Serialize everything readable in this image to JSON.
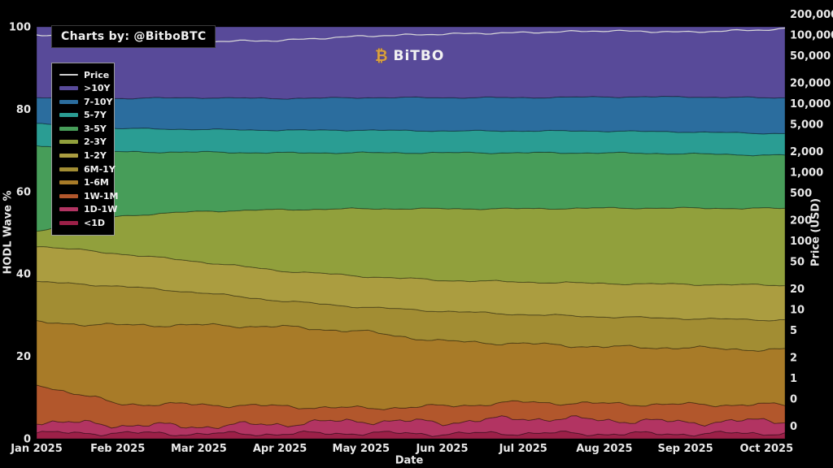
{
  "badge": {
    "text": "Charts by: @BitboBTC"
  },
  "logo": {
    "icon": "₿",
    "text": "BiTBO"
  },
  "legend": {
    "items": [
      {
        "label": "Price",
        "color": "#d0d0d0",
        "type": "line"
      },
      {
        "label": ">10Y",
        "color": "#584a99",
        "type": "area"
      },
      {
        "label": "7-10Y",
        "color": "#2b6d9e",
        "type": "area"
      },
      {
        "label": "5-7Y",
        "color": "#2a9d93",
        "type": "area"
      },
      {
        "label": "3-5Y",
        "color": "#479d59",
        "type": "area"
      },
      {
        "label": "2-3Y",
        "color": "#91a03c",
        "type": "area"
      },
      {
        "label": "1-2Y",
        "color": "#ab9d40",
        "type": "area"
      },
      {
        "label": "6M-1Y",
        "color": "#a28d33",
        "type": "area"
      },
      {
        "label": "1-6M",
        "color": "#a87b28",
        "type": "area"
      },
      {
        "label": "1W-1M",
        "color": "#b2572c",
        "type": "area"
      },
      {
        "label": "1D-1W",
        "color": "#b23462",
        "type": "area"
      },
      {
        "label": "<1D",
        "color": "#9c2048",
        "type": "area"
      }
    ]
  },
  "chart_data": {
    "type": "area",
    "stacked": true,
    "title": "",
    "xlabel": "Date",
    "ylabel_left": "HODL Wave %",
    "ylabel_right": "Price (USD)",
    "grid": false,
    "legend_position": "upper-left",
    "ylim_left": [
      0,
      100
    ],
    "x_categories": [
      "Jan 2025",
      "Feb 2025",
      "Mar 2025",
      "Apr 2025",
      "May 2025",
      "Jun 2025",
      "Jul 2025",
      "Aug 2025",
      "Sep 2025",
      "Oct 2025"
    ],
    "y_left_ticks": [
      {
        "label": "100",
        "value": 100
      },
      {
        "label": "80",
        "value": 80
      },
      {
        "label": "60",
        "value": 60
      },
      {
        "label": "40",
        "value": 40
      },
      {
        "label": "20",
        "value": 20
      },
      {
        "label": "0",
        "value": 0
      }
    ],
    "y_right_ticks": [
      {
        "label": "200,000",
        "value": 200000
      },
      {
        "label": "100,000",
        "value": 100000
      },
      {
        "label": "50,000",
        "value": 50000
      },
      {
        "label": "20,000",
        "value": 20000
      },
      {
        "label": "10,000",
        "value": 10000
      },
      {
        "label": "5,000",
        "value": 5000
      },
      {
        "label": "2,000",
        "value": 2000
      },
      {
        "label": "1,000",
        "value": 1000
      },
      {
        "label": "500",
        "value": 500
      },
      {
        "label": "200",
        "value": 200
      },
      {
        "label": "100",
        "value": 100
      },
      {
        "label": "50",
        "value": 50
      },
      {
        "label": "20",
        "value": 20
      },
      {
        "label": "10",
        "value": 10
      },
      {
        "label": "5",
        "value": 5
      },
      {
        "label": "2",
        "value": 2
      },
      {
        "label": "1",
        "value": 1
      },
      {
        "label": "0",
        "value": 0.5
      },
      {
        "label": "0",
        "value": 0.2
      }
    ],
    "series": [
      {
        "name": "<1D",
        "color": "#9c2048",
        "values": [
          1.4,
          1.4,
          1.2,
          1.2,
          1.4,
          1.2,
          1.4,
          1.2,
          1.2,
          1.4
        ]
      },
      {
        "name": "1D-1W",
        "color": "#b23462",
        "values": [
          2.8,
          2.0,
          1.8,
          2.4,
          3.0,
          2.8,
          3.6,
          3.4,
          2.8,
          3.0
        ]
      },
      {
        "name": "1W-1M",
        "color": "#b2572c",
        "values": [
          9.1,
          5.1,
          5.3,
          4.3,
          3.0,
          3.9,
          3.9,
          3.9,
          4.3,
          3.9
        ]
      },
      {
        "name": "1-6M",
        "color": "#a87b28",
        "values": [
          15.0,
          19.1,
          19.3,
          19.3,
          18.7,
          15.8,
          14.2,
          13.8,
          13.8,
          13.4
        ]
      },
      {
        "name": "6M-1Y",
        "color": "#a28d33",
        "values": [
          9.9,
          9.5,
          7.9,
          6.3,
          5.9,
          7.3,
          7.1,
          7.3,
          7.1,
          7.3
        ]
      },
      {
        "name": "1-2Y",
        "color": "#ab9d40",
        "values": [
          8.7,
          7.9,
          7.5,
          7.3,
          7.5,
          7.5,
          7.9,
          8.1,
          8.3,
          8.5
        ]
      },
      {
        "name": "2-3Y",
        "color": "#91a03c",
        "values": [
          3.6,
          9.1,
          12.2,
          14.8,
          16.4,
          17.4,
          17.8,
          18.3,
          18.5,
          18.7
        ]
      },
      {
        "name": "3-5Y",
        "color": "#479d59",
        "values": [
          20.7,
          15.6,
          14.4,
          13.8,
          13.6,
          13.6,
          13.6,
          13.4,
          13.2,
          13.0
        ]
      },
      {
        "name": "5-7Y",
        "color": "#2a9d93",
        "values": [
          5.5,
          5.7,
          5.5,
          5.5,
          5.5,
          5.3,
          5.3,
          5.3,
          5.3,
          5.3
        ]
      },
      {
        "name": "7-10Y",
        "color": "#2b6d9e",
        "values": [
          6.3,
          7.3,
          7.7,
          7.7,
          7.9,
          8.1,
          8.1,
          8.3,
          8.5,
          8.7
        ]
      },
      {
        "name": ">10Y",
        "color": "#584a99",
        "values": [
          17.2,
          17.4,
          17.2,
          17.4,
          17.2,
          17.2,
          17.2,
          17.0,
          17.0,
          17.3
        ]
      }
    ],
    "price": {
      "name": "Price",
      "color": "#d8d8d8",
      "x": [
        0,
        1,
        2,
        3,
        4,
        5,
        6,
        7,
        8,
        9,
        9.23
      ],
      "values": [
        100000,
        97000,
        80000,
        83000,
        96000,
        103000,
        108000,
        115000,
        110000,
        119000,
        123000
      ]
    }
  }
}
